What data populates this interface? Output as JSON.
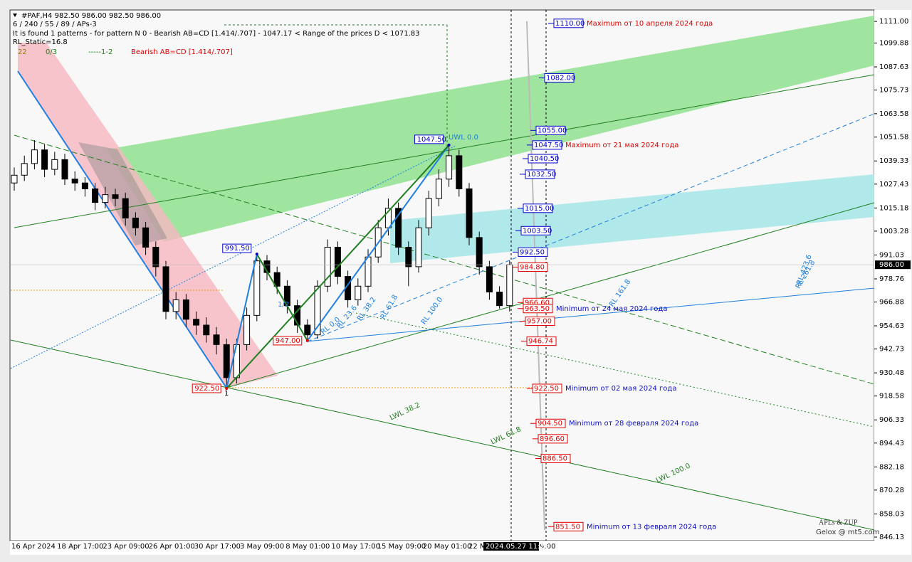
{
  "chart_data": {
    "type": "candlestick",
    "header": [
      "#PAF,H4  982.50 986.00 982.50 986.00",
      "6 / 240 / 55 / 89 / APs-3",
      "It is found 1 patterns  -  for pattern N 0 - Bearish AB=CD [1.414/.707] - 1047.17 < Range of the prices D < 1071.83",
      "RL_Static=16.8"
    ],
    "status": [
      "22",
      "0/3",
      "-----1-2",
      "Bearish AB=CD [1.414/.707]"
    ],
    "ylim": [
      844.3,
      1116.5
    ],
    "yticks": [
      {
        "value": 1111,
        "label": "1111.00"
      },
      1099.88,
      1087.63,
      1075.73,
      1063.58,
      1051.58,
      1039.33,
      1027.43,
      1015.18,
      1003.28,
      991.03,
      978.76,
      966.88,
      954.63,
      942.73,
      930.48,
      918.58,
      906.33,
      894.43,
      882.18,
      870.28,
      858.03,
      846.13
    ],
    "x_labels": [
      "16 Apr 2024",
      "18 Apr 17:00",
      "23 Apr 09:00",
      "26 Apr 01:00",
      "30 Apr 17:00",
      "3 May 09:00",
      "8 May 01:00",
      "10 May 17:00",
      "15 May 09:00",
      "20 May 01:00",
      "22 Ma",
      "9:00"
    ],
    "cursor_time": "2024.05.27 11:26",
    "last_price": {
      "value": 986,
      "label": "986.00"
    },
    "ohlc": {
      "open": [
        1028,
        1032,
        1038,
        1045,
        1035,
        1040,
        1030,
        1028,
        1025,
        1018,
        1022,
        1020,
        1010,
        1005,
        995,
        985,
        962,
        968,
        958,
        955,
        950,
        945,
        928,
        945,
        960,
        988,
        982,
        975,
        965,
        955,
        950,
        975,
        995,
        980,
        968,
        975,
        990,
        1005,
        1015,
        995,
        985,
        1005,
        1020,
        1030,
        1042,
        1025,
        1000,
        985,
        972,
        965
      ],
      "high": [
        1036,
        1042,
        1050,
        1048,
        1044,
        1043,
        1034,
        1031,
        1028,
        1026,
        1025,
        1023,
        1013,
        1008,
        998,
        988,
        972,
        971,
        962,
        959,
        954,
        948,
        948,
        964,
        991.5,
        991,
        985,
        978,
        968,
        958,
        978,
        999,
        998,
        983,
        979,
        994,
        1009,
        1020,
        1018,
        998,
        1009,
        1024,
        1035,
        1047.5,
        1045,
        1028,
        1003,
        988,
        975,
        988
      ],
      "low": [
        1024,
        1029,
        1035,
        1031,
        1032,
        1027,
        1024,
        1021,
        1014,
        1015,
        1016,
        1006,
        1001,
        991,
        980,
        958,
        958,
        954,
        950,
        946,
        940,
        922.5,
        925,
        942,
        957,
        978,
        971,
        961,
        951,
        947,
        948,
        972,
        976,
        964,
        965,
        972,
        987,
        1001,
        991,
        975,
        982,
        1001,
        1016,
        1026,
        1021,
        996,
        981,
        968,
        963.5,
        962
      ],
      "close": [
        1032,
        1038,
        1045,
        1035,
        1040,
        1030,
        1028,
        1025,
        1018,
        1022,
        1020,
        1010,
        1005,
        995,
        985,
        962,
        968,
        958,
        955,
        950,
        945,
        928,
        945,
        960,
        988,
        982,
        975,
        965,
        955,
        950,
        975,
        995,
        980,
        968,
        975,
        990,
        1005,
        1015,
        995,
        985,
        1005,
        1020,
        1030,
        1042,
        1025,
        1000,
        985,
        972,
        965,
        986
      ]
    },
    "pattern": [
      {
        "value": 922.5,
        "label": "922.50"
      },
      {
        "value": 991.5,
        "label": "991.50"
      },
      {
        "value": 947,
        "label": "947.00"
      },
      {
        "value": 1047.5,
        "label": "1047.50"
      }
    ],
    "levels": [
      {
        "value": 1110,
        "label": "1110.00",
        "color": "#0000cc",
        "note": "Maximum от 10 апреля 2024 года",
        "note_color": "#e00000"
      },
      {
        "value": 1082,
        "label": "1082.00",
        "color": "#0000cc"
      },
      {
        "value": 1055,
        "label": "1055.00",
        "color": "#0000cc"
      },
      {
        "value": 1047.5,
        "label": "1047.50",
        "color": "#0000cc",
        "note": "Maximum от 21 мая 2024 года",
        "note_color": "#e00000"
      },
      {
        "value": 1040.5,
        "label": "1040.50",
        "color": "#0000cc"
      },
      {
        "value": 1032.5,
        "label": "1032.50",
        "color": "#0000cc"
      },
      {
        "value": 1015,
        "label": "1015.00",
        "color": "#0000cc"
      },
      {
        "value": 1003.5,
        "label": "1003.50",
        "color": "#0000cc"
      },
      {
        "value": 992.5,
        "label": "992.50",
        "color": "#0000cc"
      },
      {
        "value": 984.8,
        "label": "984.80",
        "color": "#e00000"
      },
      {
        "value": 966.6,
        "label": "966.60",
        "color": "#e00000"
      },
      {
        "value": 963.5,
        "label": "963.50",
        "color": "#e00000",
        "note": "Minimum от 24 мая 2024 года",
        "note_color": "#1010c0"
      },
      {
        "value": 957,
        "label": "957.00",
        "color": "#e00000"
      },
      {
        "value": 946.74,
        "label": "946.74",
        "color": "#e00000"
      },
      {
        "value": 922.5,
        "label": "922.50",
        "color": "#e00000",
        "note": "Minimum от 02 мая 2024 года",
        "note_color": "#1010c0"
      },
      {
        "value": 904.5,
        "label": "904.50",
        "color": "#e00000",
        "note": "Minimum от 28 февраля 2024 года",
        "note_color": "#1010c0"
      },
      {
        "value": 896.6,
        "label": "896.60",
        "color": "#e00000"
      },
      {
        "value": 886.5,
        "label": "886.50",
        "color": "#e00000"
      },
      {
        "value": 851.5,
        "label": "851.50",
        "color": "#e00000",
        "note": "Minimum от 13 февраля 2024 года",
        "note_color": "#1010c0"
      }
    ],
    "annotations": [
      "UWL 0.0",
      "LWL 38.2",
      "LWL 61.8",
      "LWL 100.0",
      "RL 0.0",
      "RL 23.6",
      "RL 38.2",
      "RL 61.8",
      "RL 100.0",
      "RL 161.8",
      "RL 261.8",
      "RL 423.6",
      "1/2",
      "1"
    ],
    "watermark": [
      "APLs & ZUP",
      "Gelox @ mt5.com"
    ]
  }
}
